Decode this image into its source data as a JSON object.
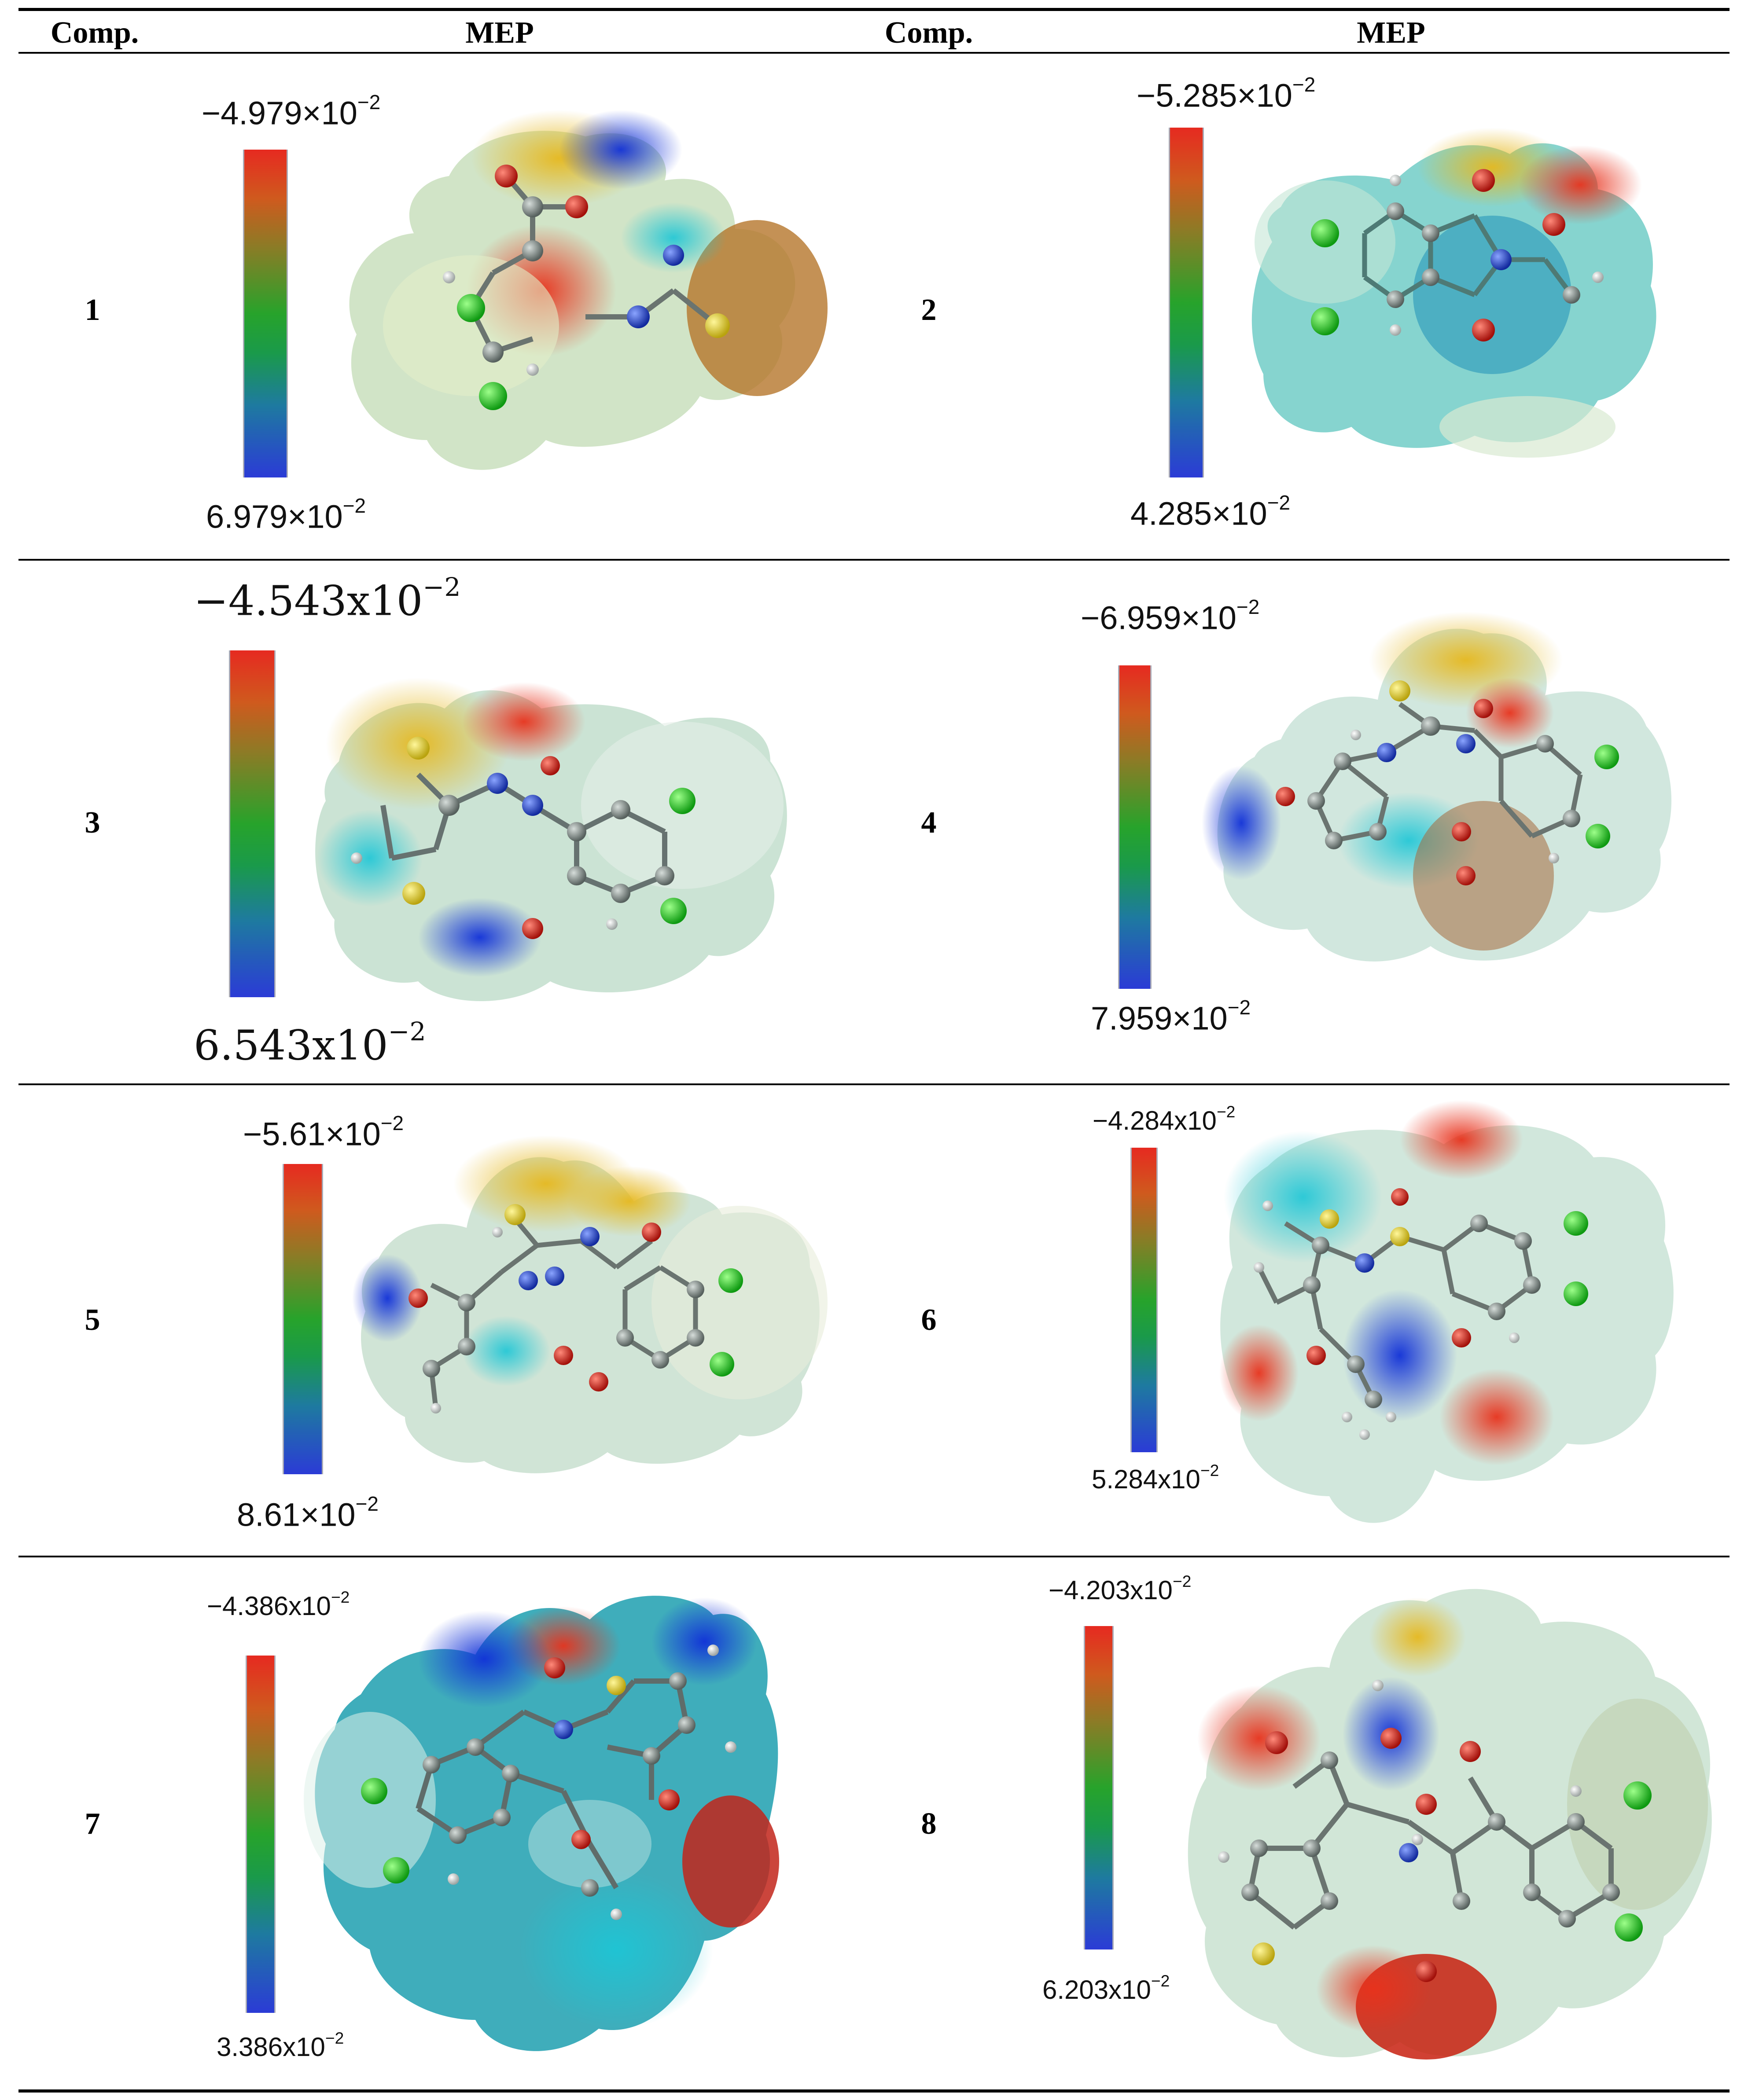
{
  "header": {
    "comp_left": "Comp.",
    "mep_left": "MEP",
    "comp_right": "Comp.",
    "mep_right": "MEP"
  },
  "compounds": [
    {
      "id": "1",
      "top": "−4.979×10",
      "bottom": "6.979×10",
      "exp": "−2"
    },
    {
      "id": "2",
      "top": "−5.285×10",
      "bottom": "4.285×10",
      "exp": "−2"
    },
    {
      "id": "3",
      "top": "−4.543x10",
      "bottom": "6.543x10",
      "exp": "−2"
    },
    {
      "id": "4",
      "top": "−6.959×10",
      "bottom": "7.959×10",
      "exp": "−2"
    },
    {
      "id": "5",
      "top": "−5.61×10",
      "bottom": "8.61×10",
      "exp": "−2"
    },
    {
      "id": "6",
      "top": "−4.284x10",
      "bottom": "5.284x10",
      "exp": "−2"
    },
    {
      "id": "7",
      "top": "−4.386x10",
      "bottom": "3.386x10",
      "exp": "−2"
    },
    {
      "id": "8",
      "top": "−4.203x10",
      "bottom": "6.203x10",
      "exp": "−2"
    }
  ],
  "colors": {
    "negative": "#e62a20",
    "neutral": "#27a32b",
    "positive": "#2b3bd6",
    "chlorine": "#1fc21f",
    "oxygen": "#d41a10",
    "nitrogen": "#1a3ad4",
    "sulfur": "#e3d21a",
    "carbon": "#7d8a86",
    "hydrogen": "#f2f2f2"
  }
}
